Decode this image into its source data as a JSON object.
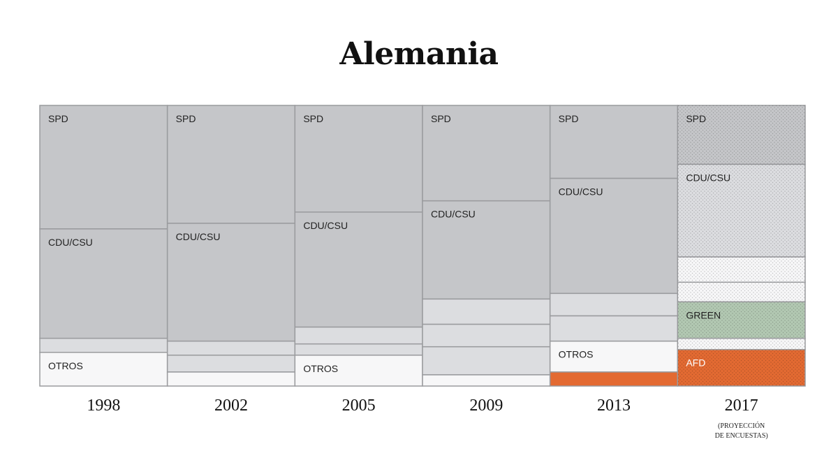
{
  "title": "Alemania",
  "chart_data": {
    "type": "stacked_bar",
    "title": "Alemania",
    "ylim": [
      0,
      100
    ],
    "unit": "%",
    "categories": [
      "1998",
      "2002",
      "2005",
      "2009",
      "2013",
      "2017"
    ],
    "category_notes": [
      "",
      "",
      "",
      "",
      "",
      "(PROYECCIÓN DE ENCUESTAS)"
    ],
    "colors": {
      "grey": "#c5c6c9",
      "light_grey": "#dcdde0",
      "white": "#f7f7f8",
      "green": "#b2c8b2",
      "orange": "#e36a32",
      "border": "#9a9b9e"
    },
    "columns": [
      {
        "segments": [
          {
            "label": "SPD",
            "value": 44,
            "color": "grey"
          },
          {
            "label": "CDU/CSU",
            "value": 39,
            "color": "grey"
          },
          {
            "label": "",
            "value": 5,
            "color": "light_grey"
          },
          {
            "label": "OTROS",
            "value": 12,
            "color": "white"
          }
        ]
      },
      {
        "segments": [
          {
            "label": "SPD",
            "value": 42,
            "color": "grey"
          },
          {
            "label": "CDU/CSU",
            "value": 42,
            "color": "grey"
          },
          {
            "label": "",
            "value": 5,
            "color": "light_grey"
          },
          {
            "label": "",
            "value": 6,
            "color": "light_grey"
          },
          {
            "label": "",
            "value": 5,
            "color": "white"
          }
        ]
      },
      {
        "segments": [
          {
            "label": "SPD",
            "value": 38,
            "color": "grey"
          },
          {
            "label": "CDU/CSU",
            "value": 41,
            "color": "grey"
          },
          {
            "label": "",
            "value": 6,
            "color": "light_grey"
          },
          {
            "label": "",
            "value": 4,
            "color": "light_grey"
          },
          {
            "label": "OTROS",
            "value": 11,
            "color": "white"
          }
        ]
      },
      {
        "segments": [
          {
            "label": "SPD",
            "value": 34,
            "color": "grey"
          },
          {
            "label": "CDU/CSU",
            "value": 35,
            "color": "grey"
          },
          {
            "label": "",
            "value": 9,
            "color": "light_grey"
          },
          {
            "label": "",
            "value": 8,
            "color": "light_grey"
          },
          {
            "label": "",
            "value": 10,
            "color": "light_grey"
          },
          {
            "label": "",
            "value": 4,
            "color": "white"
          }
        ]
      },
      {
        "segments": [
          {
            "label": "SPD",
            "value": 26,
            "color": "grey"
          },
          {
            "label": "CDU/CSU",
            "value": 41,
            "color": "grey"
          },
          {
            "label": "",
            "value": 8,
            "color": "light_grey"
          },
          {
            "label": "",
            "value": 9,
            "color": "light_grey"
          },
          {
            "label": "OTROS",
            "value": 11,
            "color": "white"
          },
          {
            "label": "",
            "value": 5,
            "color": "orange"
          }
        ]
      },
      {
        "segments": [
          {
            "label": "SPD",
            "value": 21,
            "color": "grey",
            "dotted": true
          },
          {
            "label": "CDU/CSU",
            "value": 33,
            "color": "light_grey",
            "dotted": true
          },
          {
            "label": "",
            "value": 9,
            "color": "white",
            "dotted": true
          },
          {
            "label": "",
            "value": 7,
            "color": "white",
            "dotted": true
          },
          {
            "label": "GREEN",
            "value": 13,
            "color": "green",
            "dotted": true
          },
          {
            "label": "",
            "value": 4,
            "color": "white",
            "dotted": true
          },
          {
            "label": "AFD",
            "value": 13,
            "color": "orange",
            "dotted": true
          }
        ]
      }
    ]
  }
}
